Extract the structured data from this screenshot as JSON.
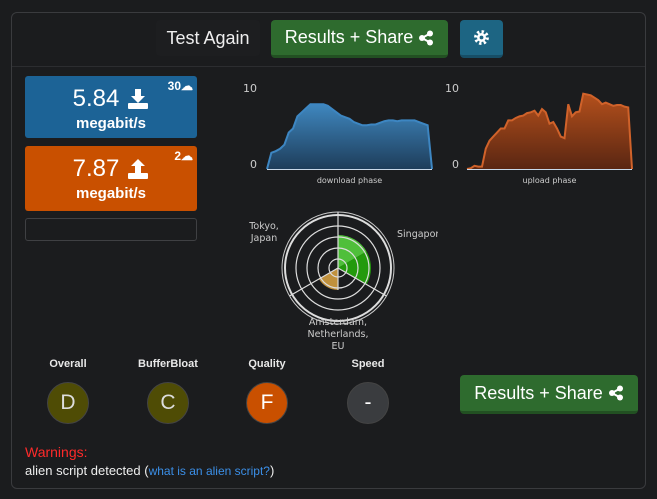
{
  "header": {
    "test_again": "Test Again",
    "results_share": "Results + Share",
    "icons": {
      "share": "share-icon",
      "settings": "gear-icon"
    }
  },
  "download": {
    "value": "5.84",
    "unit": "megabit/s",
    "servers": "30",
    "icon": "download-icon",
    "color": "#1c6396"
  },
  "upload": {
    "value": "7.87",
    "unit": "megabit/s",
    "servers": "2",
    "icon": "upload-icon",
    "color": "#c95000"
  },
  "chart_data": [
    {
      "type": "area",
      "xlabel": "download phase",
      "ylim": [
        0,
        10
      ],
      "yticks": [
        "0",
        "10"
      ],
      "color": "#3d86c2",
      "values": [
        0,
        2,
        2.2,
        2.5,
        3,
        4.5,
        5,
        6.5,
        7,
        7.5,
        8,
        8,
        8,
        8,
        7.8,
        7.4,
        7,
        6.6,
        6.4,
        6.2,
        5.8,
        5.6,
        5.4,
        5.4,
        5.5,
        5.5,
        5.7,
        5.9,
        6,
        6,
        5.9,
        6,
        6,
        6,
        6,
        5.8,
        5.6,
        5.4,
        0
      ]
    },
    {
      "type": "area",
      "xlabel": "upload phase",
      "ylim": [
        0,
        10
      ],
      "yticks": [
        "0",
        "10"
      ],
      "color": "#d0622a",
      "values": [
        0,
        0.1,
        0.4,
        0.3,
        0.3,
        2.5,
        3.5,
        4,
        4.5,
        5,
        5,
        6,
        6,
        6.3,
        6.5,
        6.6,
        6.9,
        7,
        7.2,
        6.6,
        7.4,
        7,
        5.6,
        5.8,
        5,
        4,
        3.8,
        8,
        6.5,
        7,
        7.1,
        9.3,
        9.2,
        9.1,
        8.8,
        8.5,
        8,
        8.2,
        8,
        7.8,
        7.9,
        7.9,
        7.7,
        7.6,
        0
      ]
    },
    {
      "type": "polar",
      "categories": [
        "Tokyo, Japan",
        "Singapore",
        "Amsterdam, Netherlands, EU"
      ]
    }
  ],
  "grades": [
    {
      "label": "Overall",
      "grade": "D",
      "color": "#4f4c05"
    },
    {
      "label": "BufferBloat",
      "grade": "C",
      "color": "#4f4c05"
    },
    {
      "label": "Quality",
      "grade": "F",
      "color": "#c95000"
    },
    {
      "label": "Speed",
      "grade": "-",
      "color": "#3a3c3f"
    }
  ],
  "results_share_bottom": "Results + Share",
  "warnings": {
    "title": "Warnings:",
    "text": "alien script detected (",
    "link": "what is an alien script?",
    "close": ")"
  }
}
